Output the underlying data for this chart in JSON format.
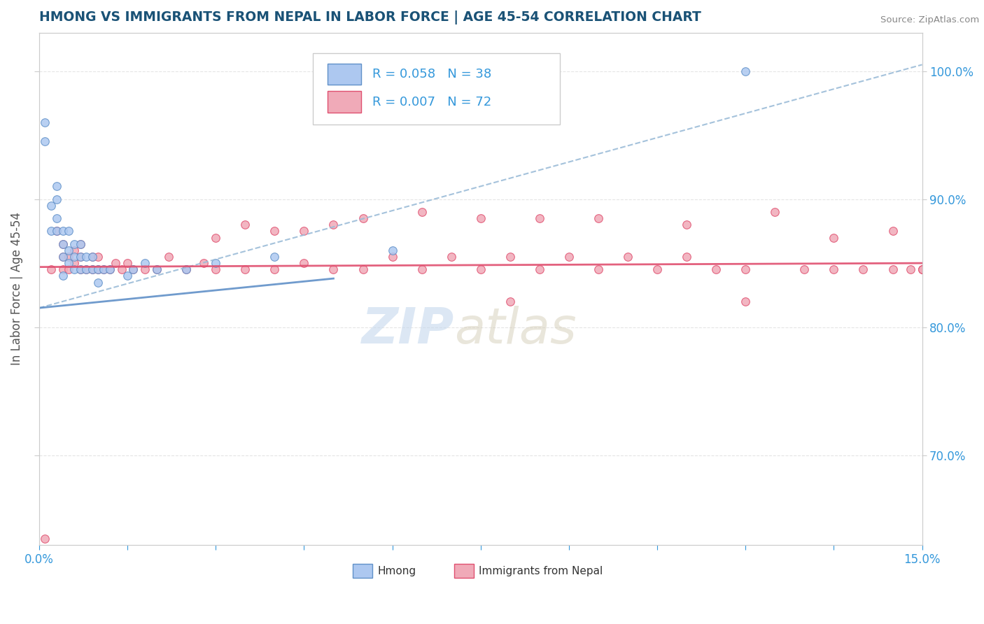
{
  "title": "HMONG VS IMMIGRANTS FROM NEPAL IN LABOR FORCE | AGE 45-54 CORRELATION CHART",
  "source": "Source: ZipAtlas.com",
  "ylabel": "In Labor Force | Age 45-54",
  "xlim": [
    0.0,
    0.15
  ],
  "ylim": [
    0.63,
    1.03
  ],
  "xticks": [
    0.0,
    0.015,
    0.03,
    0.045,
    0.06,
    0.075,
    0.09,
    0.105,
    0.12,
    0.135,
    0.15
  ],
  "xtick_labels": [
    "0.0%",
    "",
    "",
    "",
    "",
    "",
    "",
    "",
    "",
    "",
    "15.0%"
  ],
  "ytick_labels_right": [
    "70.0%",
    "80.0%",
    "90.0%",
    "100.0%"
  ],
  "yticks_right": [
    0.7,
    0.8,
    0.9,
    1.0
  ],
  "hmong_fill_color": "#adc8f0",
  "hmong_edge_color": "#6090c8",
  "nepal_fill_color": "#f0aab8",
  "nepal_edge_color": "#e05070",
  "hmong_trend_color": "#6090c8",
  "nepal_trend_color": "#e05070",
  "dashed_trend_color": "#9bbcd8",
  "legend_label1": "Hmong",
  "legend_label2": "Immigrants from Nepal",
  "watermark": "ZIPatlas",
  "background_color": "#ffffff",
  "title_color": "#1a5276",
  "axis_label_color": "#555555",
  "tick_color": "#3498db",
  "grid_color": "#e5e5e5",
  "hmong_x": [
    0.001,
    0.001,
    0.002,
    0.002,
    0.003,
    0.003,
    0.003,
    0.003,
    0.004,
    0.004,
    0.004,
    0.004,
    0.005,
    0.005,
    0.005,
    0.006,
    0.006,
    0.006,
    0.007,
    0.007,
    0.007,
    0.008,
    0.008,
    0.009,
    0.009,
    0.01,
    0.01,
    0.011,
    0.012,
    0.015,
    0.016,
    0.018,
    0.02,
    0.025,
    0.03,
    0.04,
    0.06,
    0.12
  ],
  "hmong_y": [
    0.945,
    0.96,
    0.875,
    0.895,
    0.875,
    0.885,
    0.9,
    0.91,
    0.84,
    0.855,
    0.865,
    0.875,
    0.85,
    0.86,
    0.875,
    0.845,
    0.855,
    0.865,
    0.845,
    0.855,
    0.865,
    0.845,
    0.855,
    0.845,
    0.855,
    0.835,
    0.845,
    0.845,
    0.845,
    0.84,
    0.845,
    0.85,
    0.845,
    0.845,
    0.85,
    0.855,
    0.86,
    1.0
  ],
  "nepal_x": [
    0.001,
    0.002,
    0.003,
    0.004,
    0.004,
    0.004,
    0.005,
    0.005,
    0.006,
    0.006,
    0.007,
    0.007,
    0.007,
    0.008,
    0.009,
    0.009,
    0.01,
    0.01,
    0.011,
    0.012,
    0.013,
    0.014,
    0.015,
    0.016,
    0.018,
    0.02,
    0.022,
    0.025,
    0.028,
    0.03,
    0.035,
    0.04,
    0.045,
    0.05,
    0.055,
    0.06,
    0.065,
    0.07,
    0.075,
    0.08,
    0.085,
    0.09,
    0.095,
    0.1,
    0.105,
    0.11,
    0.115,
    0.12,
    0.13,
    0.135,
    0.14,
    0.145,
    0.148,
    0.15,
    0.03,
    0.035,
    0.04,
    0.045,
    0.05,
    0.055,
    0.065,
    0.075,
    0.085,
    0.095,
    0.11,
    0.125,
    0.135,
    0.145,
    0.15,
    0.15,
    0.12,
    0.08
  ],
  "nepal_y": [
    0.635,
    0.845,
    0.875,
    0.845,
    0.855,
    0.865,
    0.845,
    0.855,
    0.85,
    0.86,
    0.845,
    0.855,
    0.865,
    0.845,
    0.845,
    0.855,
    0.845,
    0.855,
    0.845,
    0.845,
    0.85,
    0.845,
    0.85,
    0.845,
    0.845,
    0.845,
    0.855,
    0.845,
    0.85,
    0.845,
    0.845,
    0.845,
    0.85,
    0.845,
    0.845,
    0.855,
    0.845,
    0.855,
    0.845,
    0.855,
    0.845,
    0.855,
    0.845,
    0.855,
    0.845,
    0.855,
    0.845,
    0.845,
    0.845,
    0.845,
    0.845,
    0.845,
    0.845,
    0.845,
    0.87,
    0.88,
    0.875,
    0.875,
    0.88,
    0.885,
    0.89,
    0.885,
    0.885,
    0.885,
    0.88,
    0.89,
    0.87,
    0.875,
    0.845,
    0.845,
    0.82,
    0.82
  ],
  "hmong_trend_x0": 0.0,
  "hmong_trend_y0": 0.815,
  "hmong_trend_x1": 0.15,
  "hmong_trend_y1": 1.005,
  "nepal_trend_x0": 0.0,
  "nepal_trend_y0": 0.847,
  "nepal_trend_x1": 0.15,
  "nepal_trend_y1": 0.85
}
